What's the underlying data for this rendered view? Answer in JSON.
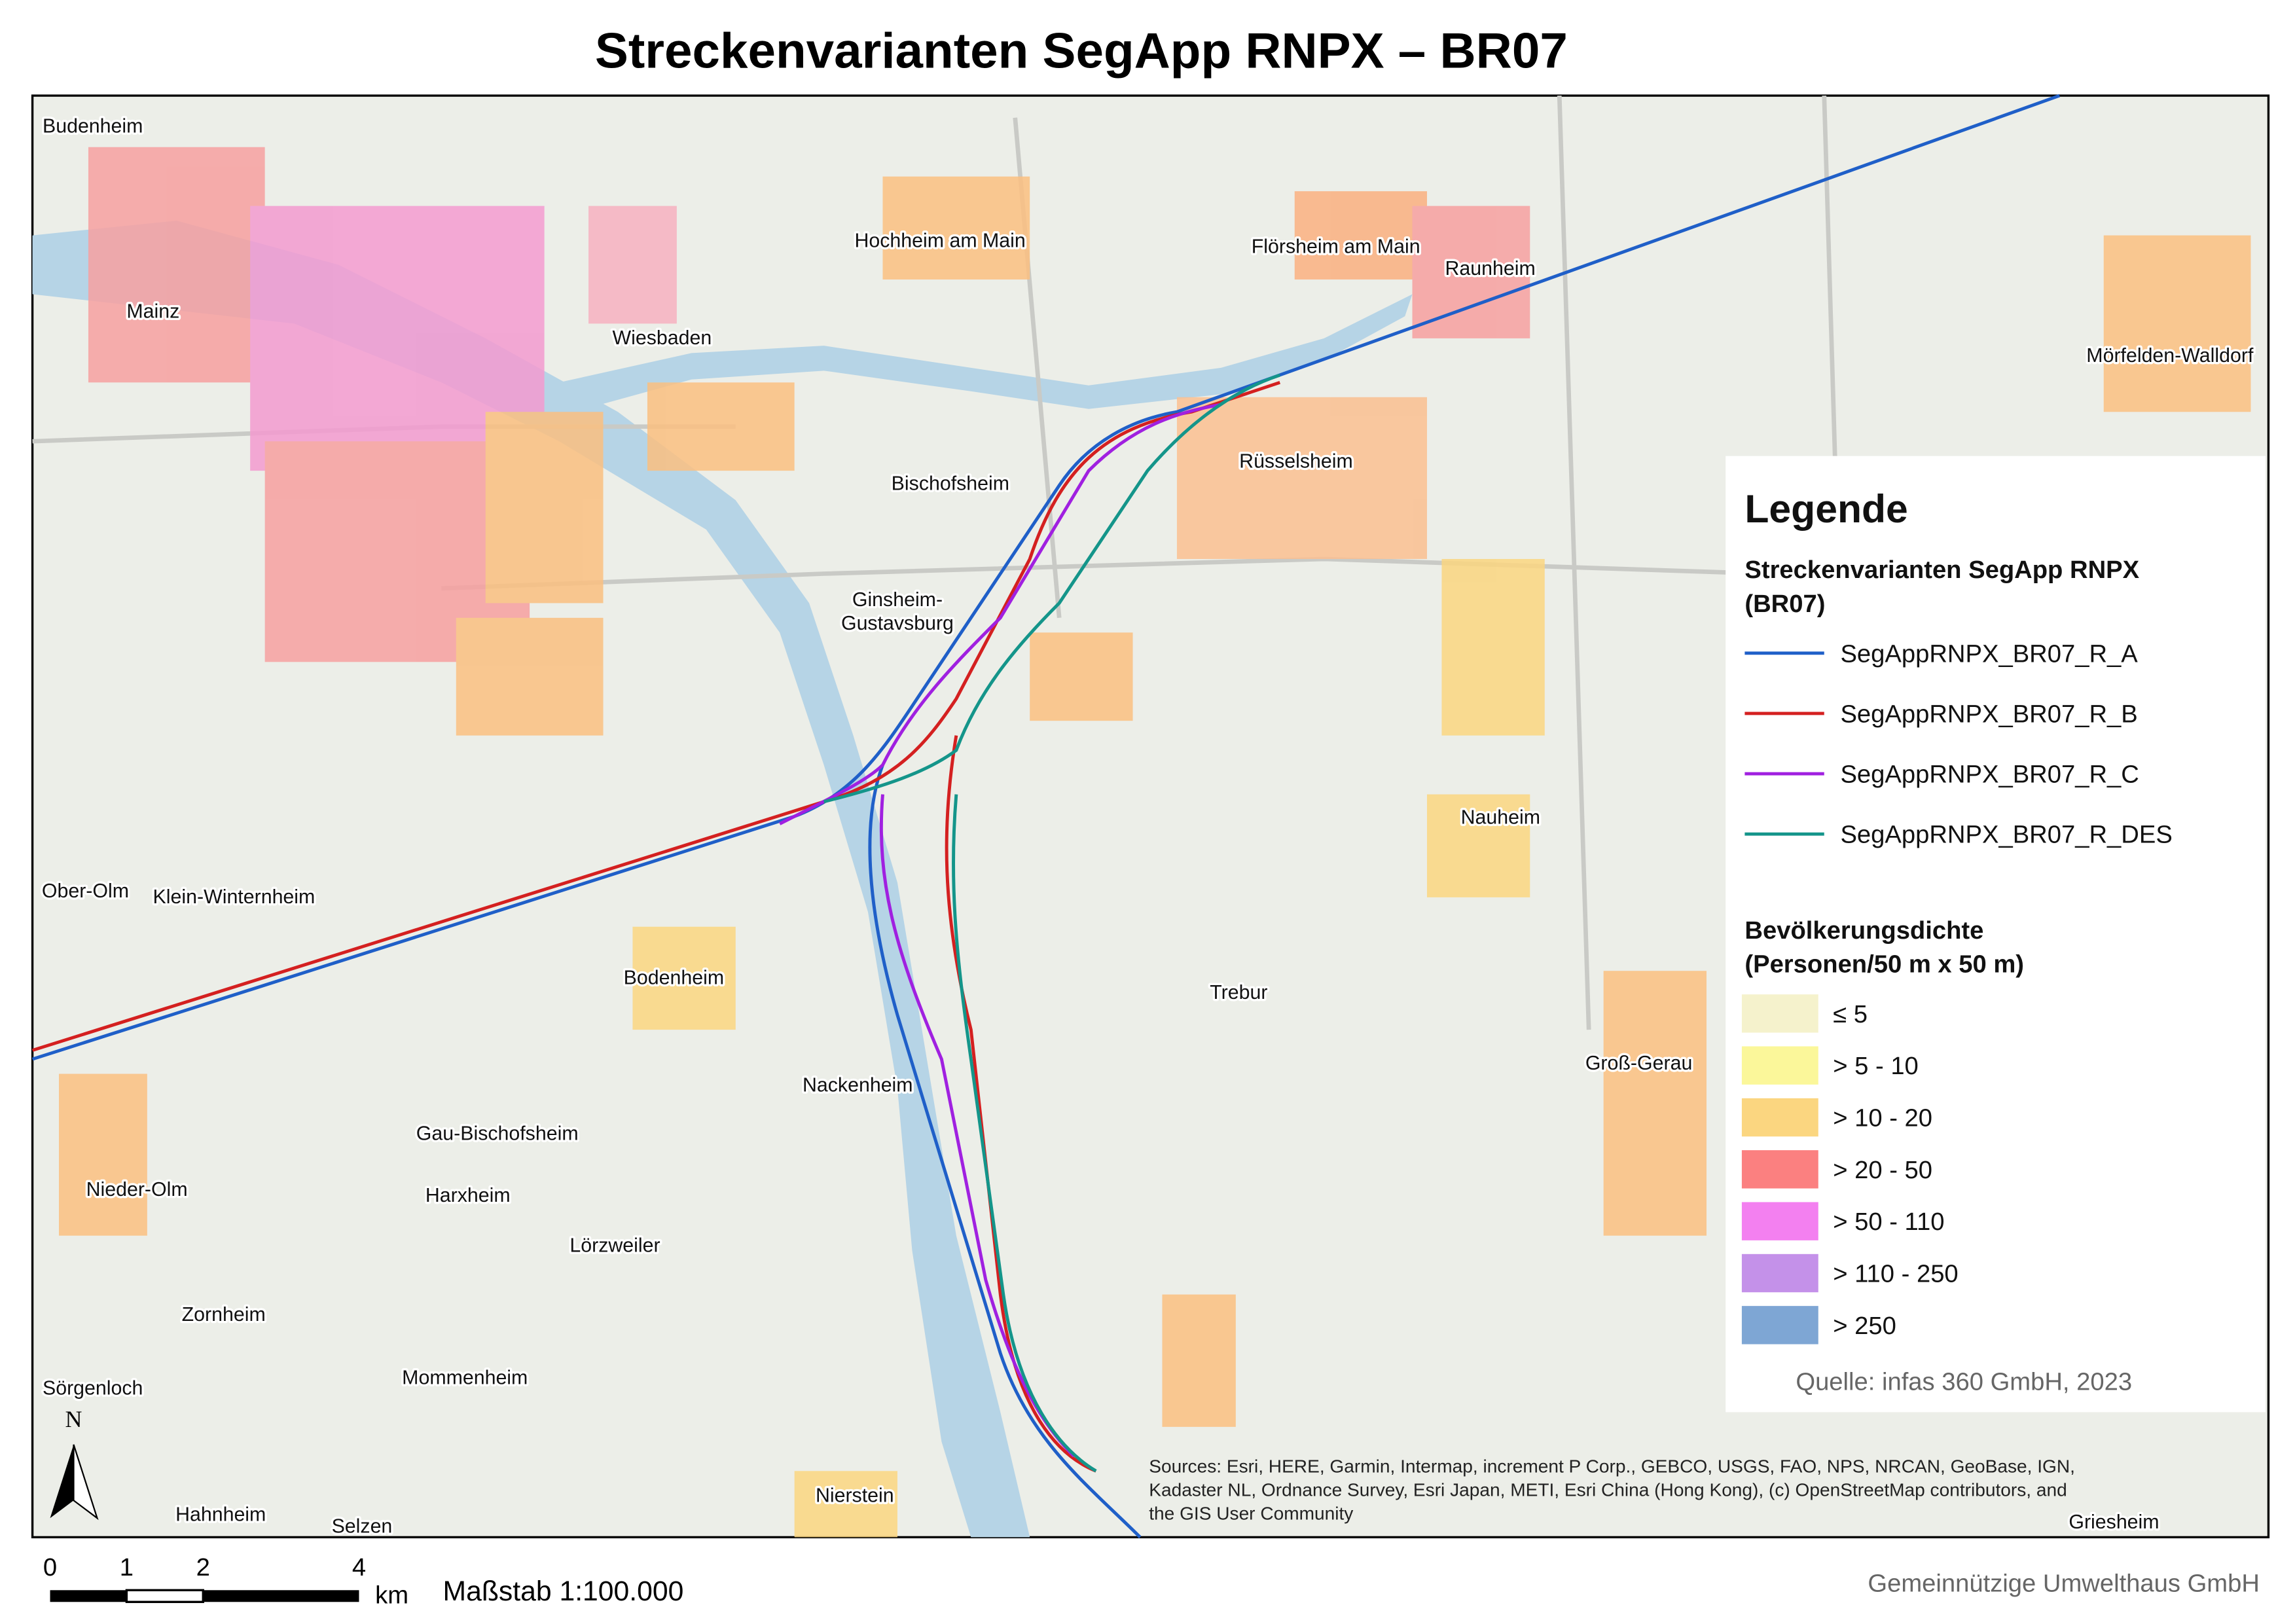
{
  "title": "Streckenvarianten SegApp RNPX – BR07",
  "places": [
    "Budenheim",
    "Mainz",
    "Wiesbaden",
    "Hochheim am Main",
    "Flörsheim am Main",
    "Raunheim",
    "Mörfelden-Walldorf",
    "Bischofsheim",
    "Rüsselsheim",
    "Ginsheim-",
    "Gustavsburg",
    "Nauheim",
    "Ober-Olm",
    "Klein-Winternheim",
    "Bodenheim",
    "Trebur",
    "Groß-Gerau",
    "Nackenheim",
    "Gau-Bischofsheim",
    "Nieder-Olm",
    "Harxheim",
    "Lörzweiler",
    "Zornheim",
    "Mommenheim",
    "Sörgenloch",
    "Nierstein",
    "Hahnheim",
    "Selzen",
    "Griesheim"
  ],
  "legend": {
    "title": "Legende",
    "routes_title": [
      "Streckenvarianten SegApp RNPX",
      "(BR07)"
    ],
    "routes": [
      {
        "name": "SegAppRNPX_BR07_R_A",
        "color": "#1f5fc8"
      },
      {
        "name": "SegAppRNPX_BR07_R_B",
        "color": "#d42020"
      },
      {
        "name": "SegAppRNPX_BR07_R_C",
        "color": "#a020e0"
      },
      {
        "name": "SegAppRNPX_BR07_R_DES",
        "color": "#14958a"
      }
    ],
    "density_title": [
      "Bevölkerungsdichte",
      "(Personen/50 m x 50 m)"
    ],
    "density": [
      {
        "label": "≤ 5",
        "color": "#f5f2cc"
      },
      {
        "label": "> 5 - 10",
        "color": "#fbf79a"
      },
      {
        "label": "> 10 - 20",
        "color": "#fbd680"
      },
      {
        "label": "> 20 - 50",
        "color": "#fb8080"
      },
      {
        "label": "> 50 - 110",
        "color": "#f380f0"
      },
      {
        "label": "> 110 - 250",
        "color": "#c491e9"
      },
      {
        "label": "> 250",
        "color": "#7ea6d4"
      }
    ],
    "source": "Quelle: infas 360 GmbH, 2023"
  },
  "attribution": [
    "Sources: Esri, HERE, Garmin, Intermap, increment P Corp., GEBCO, USGS, FAO, NPS, NRCAN, GeoBase, IGN,",
    "Kadaster NL, Ordnance Survey, Esri Japan, METI, Esri China (Hong Kong), (c) OpenStreetMap contributors, and",
    "the GIS User Community"
  ],
  "north": "N",
  "scale_bar": {
    "ticks": [
      "0",
      "1",
      "2",
      "4"
    ],
    "unit": "km",
    "scale": "Maßstab 1:100.000"
  },
  "credit": "Gemeinnützige Umwelthaus GmbH"
}
